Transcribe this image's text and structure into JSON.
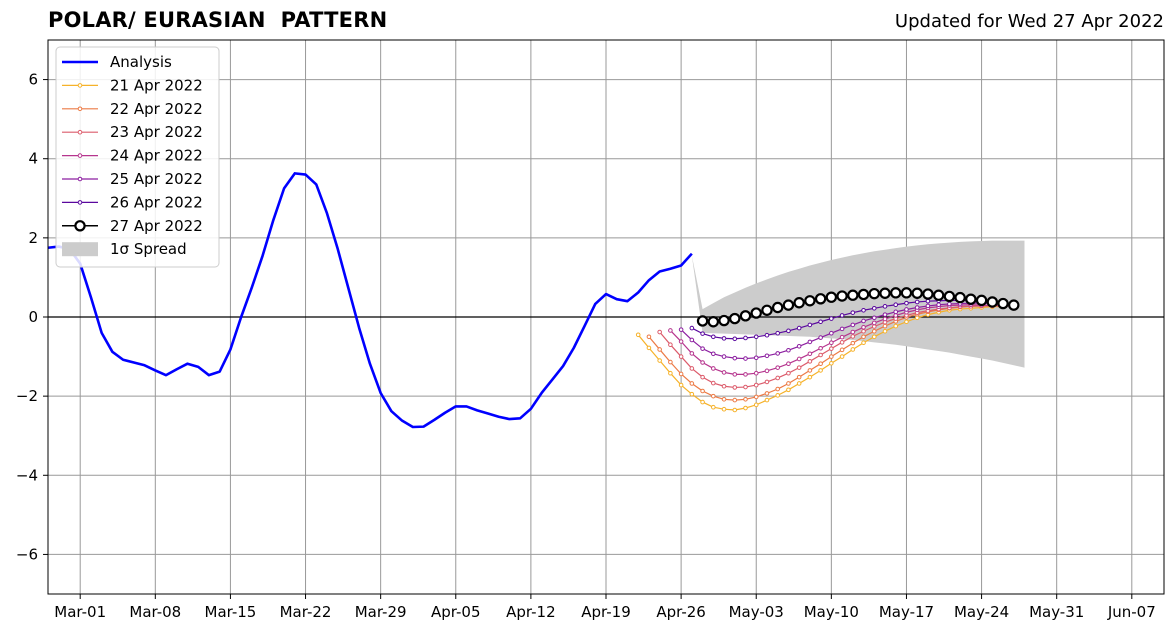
{
  "page": {
    "title": "POLAR/ EURASIAN  PATTERN",
    "updated": "Updated for Wed 27 Apr 2022"
  },
  "chart_data": {
    "type": "line",
    "title": "POLAR/ EURASIAN  PATTERN",
    "subtitle": "Updated for Wed 27 Apr 2022",
    "xlabel": "",
    "ylabel": "",
    "x_axis": {
      "type": "date",
      "range": [
        "2022-02-26",
        "2022-06-10"
      ],
      "tick_dates": [
        "2022-03-01",
        "2022-03-08",
        "2022-03-15",
        "2022-03-22",
        "2022-03-29",
        "2022-04-05",
        "2022-04-12",
        "2022-04-19",
        "2022-04-26",
        "2022-05-03",
        "2022-05-10",
        "2022-05-17",
        "2022-05-24",
        "2022-05-31",
        "2022-06-07"
      ],
      "tick_labels": [
        "Mar-01",
        "Mar-08",
        "Mar-15",
        "Mar-22",
        "Mar-29",
        "Apr-05",
        "Apr-12",
        "Apr-19",
        "Apr-26",
        "May-03",
        "May-10",
        "May-17",
        "May-24",
        "May-31",
        "Jun-07"
      ]
    },
    "y_axis": {
      "range": [
        -7,
        7
      ],
      "ticks": [
        -6,
        -4,
        -2,
        0,
        2,
        4,
        6
      ],
      "tick_labels": [
        "−6",
        "−4",
        "−2",
        "0",
        "2",
        "4",
        "6"
      ]
    },
    "grid": true,
    "zero_line": true,
    "legend_position": "top-left",
    "legend_labels": {
      "analysis": "Analysis",
      "spread": "1σ Spread"
    },
    "colors": {
      "analysis": "#0000ff",
      "spread": "#cccccc",
      "grid": "#999999",
      "f21": "#f6b22a",
      "f22": "#ec7a45",
      "f23": "#dc5b6b",
      "f24": "#b6358e",
      "f25": "#8c1fa0",
      "f26": "#5a089e",
      "f27": "#000000"
    },
    "analysis": {
      "name": "Analysis",
      "start_date": "2022-02-26",
      "values": [
        1.75,
        1.78,
        1.72,
        1.35,
        0.5,
        -0.4,
        -0.88,
        -1.08,
        -1.15,
        -1.22,
        -1.35,
        -1.47,
        -1.32,
        -1.18,
        -1.26,
        -1.47,
        -1.38,
        -0.82,
        0.0,
        0.75,
        1.55,
        2.45,
        3.25,
        3.63,
        3.6,
        3.35,
        2.62,
        1.72,
        0.72,
        -0.28,
        -1.18,
        -1.92,
        -2.38,
        -2.62,
        -2.78,
        -2.77,
        -2.6,
        -2.42,
        -2.26,
        -2.26,
        -2.36,
        -2.44,
        -2.52,
        -2.58,
        -2.56,
        -2.32,
        -1.92,
        -1.58,
        -1.24,
        -0.78,
        -0.23,
        0.33,
        0.58,
        0.45,
        0.4,
        0.62,
        0.93,
        1.15,
        1.22,
        1.3,
        1.6
      ]
    },
    "series": [
      {
        "name": "21 Apr 2022",
        "color_key": "f21",
        "start_date": "2022-04-22",
        "values": [
          -0.45,
          -0.78,
          -1.1,
          -1.42,
          -1.72,
          -1.95,
          -2.15,
          -2.28,
          -2.33,
          -2.35,
          -2.3,
          -2.22,
          -2.1,
          -1.98,
          -1.84,
          -1.68,
          -1.52,
          -1.35,
          -1.17,
          -1.0,
          -0.82,
          -0.65,
          -0.5,
          -0.36,
          -0.23,
          -0.12,
          -0.02,
          0.06,
          0.12,
          0.17,
          0.2,
          0.22,
          0.24,
          0.26,
          0.26
        ]
      },
      {
        "name": "22 Apr 2022",
        "color_key": "f22",
        "start_date": "2022-04-23",
        "values": [
          -0.5,
          -0.82,
          -1.14,
          -1.44,
          -1.68,
          -1.87,
          -2.0,
          -2.08,
          -2.1,
          -2.08,
          -2.02,
          -1.93,
          -1.82,
          -1.68,
          -1.52,
          -1.35,
          -1.18,
          -1.0,
          -0.83,
          -0.66,
          -0.5,
          -0.36,
          -0.23,
          -0.11,
          -0.01,
          0.07,
          0.13,
          0.18,
          0.22,
          0.25,
          0.27,
          0.28,
          0.29,
          0.29
        ]
      },
      {
        "name": "23 Apr 2022",
        "color_key": "f23",
        "start_date": "2022-04-24",
        "values": [
          -0.38,
          -0.7,
          -1.0,
          -1.3,
          -1.52,
          -1.67,
          -1.75,
          -1.78,
          -1.77,
          -1.72,
          -1.64,
          -1.54,
          -1.42,
          -1.28,
          -1.12,
          -0.96,
          -0.8,
          -0.64,
          -0.49,
          -0.36,
          -0.24,
          -0.13,
          -0.04,
          0.04,
          0.11,
          0.16,
          0.2,
          0.23,
          0.26,
          0.27,
          0.28,
          0.28,
          0.28,
          0.27
        ]
      },
      {
        "name": "24 Apr 2022",
        "color_key": "f24",
        "start_date": "2022-04-25",
        "values": [
          -0.34,
          -0.62,
          -0.92,
          -1.15,
          -1.3,
          -1.4,
          -1.45,
          -1.45,
          -1.42,
          -1.36,
          -1.28,
          -1.18,
          -1.06,
          -0.93,
          -0.79,
          -0.65,
          -0.51,
          -0.38,
          -0.26,
          -0.15,
          -0.05,
          0.04,
          0.12,
          0.18,
          0.23,
          0.26,
          0.29,
          0.3,
          0.31,
          0.3,
          0.29,
          0.28
        ]
      },
      {
        "name": "25 Apr 2022",
        "color_key": "f25",
        "start_date": "2022-04-26",
        "values": [
          -0.32,
          -0.58,
          -0.8,
          -0.93,
          -1.0,
          -1.04,
          -1.05,
          -1.03,
          -0.98,
          -0.92,
          -0.84,
          -0.74,
          -0.63,
          -0.52,
          -0.41,
          -0.3,
          -0.2,
          -0.1,
          -0.02,
          0.06,
          0.13,
          0.19,
          0.24,
          0.28,
          0.31,
          0.33,
          0.34,
          0.35,
          0.35,
          0.34,
          0.33
        ]
      },
      {
        "name": "26 Apr 2022",
        "color_key": "f26",
        "start_date": "2022-04-27",
        "values": [
          -0.28,
          -0.42,
          -0.5,
          -0.54,
          -0.55,
          -0.53,
          -0.5,
          -0.46,
          -0.41,
          -0.35,
          -0.28,
          -0.2,
          -0.12,
          -0.04,
          0.04,
          0.11,
          0.17,
          0.22,
          0.27,
          0.31,
          0.35,
          0.38,
          0.4,
          0.41,
          0.42,
          0.42,
          0.41,
          0.39,
          0.37,
          0.35
        ]
      },
      {
        "name": "27 Apr 2022",
        "color_key": "f27",
        "start_date": "2022-04-28",
        "values": [
          -0.1,
          -0.12,
          -0.09,
          -0.04,
          0.03,
          0.1,
          0.17,
          0.24,
          0.3,
          0.36,
          0.41,
          0.46,
          0.5,
          0.53,
          0.55,
          0.57,
          0.59,
          0.6,
          0.61,
          0.61,
          0.6,
          0.58,
          0.55,
          0.52,
          0.49,
          0.45,
          0.42,
          0.38,
          0.34,
          0.3
        ]
      }
    ],
    "spread": {
      "name": "1σ Spread",
      "start_date": "2022-04-27",
      "upper": [
        1.55,
        0.2,
        0.35,
        0.5,
        0.62,
        0.74,
        0.85,
        0.95,
        1.05,
        1.14,
        1.22,
        1.3,
        1.37,
        1.44,
        1.5,
        1.56,
        1.61,
        1.66,
        1.7,
        1.74,
        1.78,
        1.81,
        1.84,
        1.86,
        1.88,
        1.9,
        1.91,
        1.92,
        1.93,
        1.93,
        1.93,
        1.93
      ],
      "lower": [
        1.55,
        -0.4,
        -0.41,
        -0.42,
        -0.43,
        -0.44,
        -0.45,
        -0.46,
        -0.47,
        -0.48,
        -0.49,
        -0.5,
        -0.52,
        -0.54,
        -0.56,
        -0.58,
        -0.61,
        -0.64,
        -0.67,
        -0.7,
        -0.74,
        -0.78,
        -0.82,
        -0.86,
        -0.9,
        -0.95,
        -1.0,
        -1.05,
        -1.1,
        -1.16,
        -1.22,
        -1.28
      ]
    }
  }
}
